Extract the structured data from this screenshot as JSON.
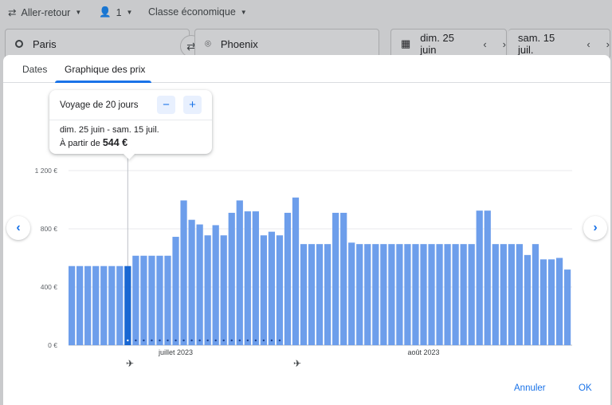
{
  "search": {
    "trip_type": "Aller-retour",
    "passengers": "1",
    "cabin": "Classe économique",
    "origin": "Paris",
    "destination": "Phoenix",
    "depart_date": "dim. 25 juin",
    "return_date": "sam. 15 juil."
  },
  "tabs": {
    "dates": "Dates",
    "price_graph": "Graphique des prix"
  },
  "popup": {
    "title": "Voyage de 20 jours",
    "minus": "−",
    "plus": "+",
    "range": "dim. 25 juin - sam. 15 juil.",
    "price_prefix": "À partir de",
    "price": "544 €"
  },
  "footer": {
    "cancel": "Annuler",
    "ok": "OK"
  },
  "colors": {
    "bar": "#6d9eeb",
    "bar_selected": "#1967d2",
    "accent": "#1a73e8"
  },
  "icons": {
    "prev": "chevron-left-icon",
    "next": "chevron-right-icon",
    "depart": "plane-takeoff-icon",
    "return": "plane-landing-icon"
  },
  "chart_data": {
    "type": "bar",
    "ylim": [
      0,
      1200
    ],
    "yticks": [
      0,
      400,
      800,
      1200
    ],
    "ytick_labels": [
      "0 €",
      "400 €",
      "800 €",
      "1 200 €"
    ],
    "xtick_labels": [
      {
        "index": 13,
        "label": "juillet 2023"
      },
      {
        "index": 44,
        "label": "août 2023"
      }
    ],
    "selected_index": 7,
    "trip_span": [
      7,
      27
    ],
    "values": [
      544,
      544,
      544,
      544,
      544,
      544,
      544,
      544,
      615,
      615,
      615,
      615,
      615,
      745,
      995,
      862,
      830,
      755,
      825,
      755,
      910,
      995,
      920,
      920,
      755,
      780,
      755,
      910,
      1015,
      695,
      695,
      695,
      695,
      910,
      910,
      705,
      695,
      695,
      695,
      695,
      695,
      695,
      695,
      695,
      695,
      695,
      695,
      695,
      695,
      695,
      695,
      925,
      925,
      695,
      695,
      695,
      695,
      620,
      695,
      590,
      590,
      600,
      520
    ]
  }
}
